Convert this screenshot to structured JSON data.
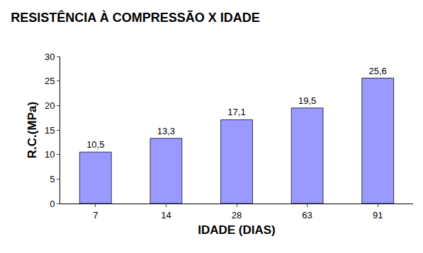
{
  "chart_data": {
    "type": "bar",
    "title": "RESISTÊNCIA À COMPRESSÃO X IDADE",
    "x_label": "IDADE (DIAS)",
    "y_label": "R.C.(MPa)",
    "categories": [
      "7",
      "14",
      "28",
      "63",
      "91"
    ],
    "values": [
      10.5,
      13.3,
      17.1,
      19.5,
      25.6
    ],
    "value_labels": [
      "10,5",
      "13,3",
      "17,1",
      "19,5",
      "25,6"
    ],
    "color": "#9999ff",
    "ylim": [
      0,
      30
    ],
    "yticks": [
      0,
      5,
      10,
      15,
      20,
      25,
      30
    ],
    "grid": false,
    "data_labels": true
  }
}
